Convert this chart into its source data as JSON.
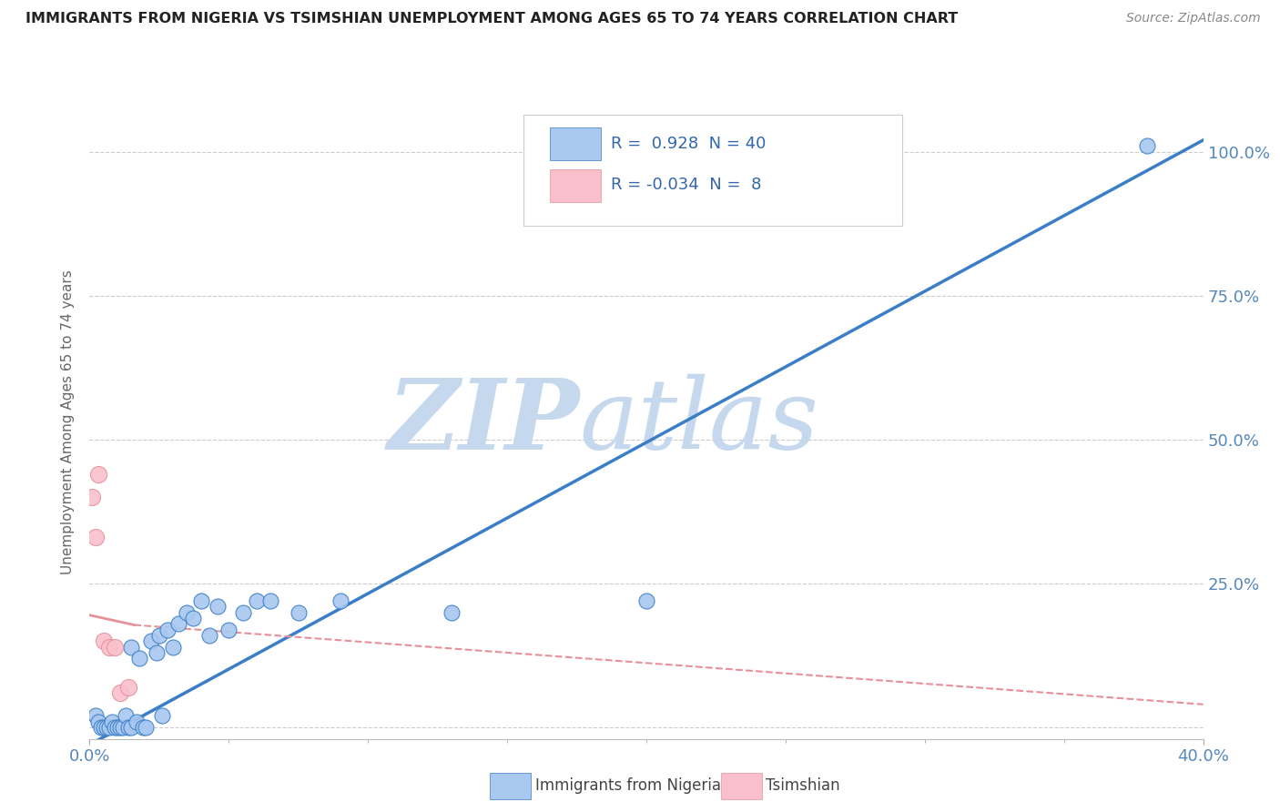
{
  "title": "IMMIGRANTS FROM NIGERIA VS TSIMSHIAN UNEMPLOYMENT AMONG AGES 65 TO 74 YEARS CORRELATION CHART",
  "source_text": "Source: ZipAtlas.com",
  "ylabel": "Unemployment Among Ages 65 to 74 years",
  "xlim": [
    0.0,
    0.4
  ],
  "ylim": [
    -0.02,
    1.08
  ],
  "ytick_positions": [
    0.0,
    0.25,
    0.5,
    0.75,
    1.0
  ],
  "ytick_labels": [
    "",
    "25.0%",
    "50.0%",
    "75.0%",
    "100.0%"
  ],
  "xtick_positions": [
    0.0,
    0.4
  ],
  "xtick_labels": [
    "0.0%",
    "40.0%"
  ],
  "nigeria_R": 0.928,
  "nigeria_N": 40,
  "tsimshian_R": -0.034,
  "tsimshian_N": 8,
  "nigeria_color": "#A8C8F0",
  "tsimshian_color": "#F9C0CC",
  "nigeria_line_color": "#3A7EC8",
  "tsimshian_line_color": "#E8909A",
  "tsimshian_solid_line": [
    [
      0.0,
      0.195
    ],
    [
      0.016,
      0.178
    ]
  ],
  "tsimshian_dashed_line": [
    [
      0.016,
      0.178
    ],
    [
      0.4,
      0.04
    ]
  ],
  "nigeria_regline": [
    [
      0.0,
      -0.03
    ],
    [
      0.4,
      1.02
    ]
  ],
  "watermark_zip": "ZIP",
  "watermark_atlas": "atlas",
  "watermark_color": "#C5D8EE",
  "background_color": "#FFFFFF",
  "grid_color": "#CCCCCC",
  "title_color": "#222222",
  "axis_label_color": "#666666",
  "tick_label_color": "#5588BB",
  "legend_R_color": "#3366AA",
  "nigeria_scatter": [
    [
      0.002,
      0.02
    ],
    [
      0.003,
      0.01
    ],
    [
      0.004,
      0.0
    ],
    [
      0.005,
      0.0
    ],
    [
      0.006,
      0.0
    ],
    [
      0.007,
      0.0
    ],
    [
      0.008,
      0.01
    ],
    [
      0.009,
      0.0
    ],
    [
      0.01,
      0.0
    ],
    [
      0.011,
      0.0
    ],
    [
      0.012,
      0.0
    ],
    [
      0.013,
      0.02
    ],
    [
      0.014,
      0.0
    ],
    [
      0.015,
      0.0
    ],
    [
      0.015,
      0.14
    ],
    [
      0.017,
      0.01
    ],
    [
      0.018,
      0.12
    ],
    [
      0.019,
      0.0
    ],
    [
      0.02,
      0.0
    ],
    [
      0.022,
      0.15
    ],
    [
      0.024,
      0.13
    ],
    [
      0.025,
      0.16
    ],
    [
      0.026,
      0.02
    ],
    [
      0.028,
      0.17
    ],
    [
      0.03,
      0.14
    ],
    [
      0.032,
      0.18
    ],
    [
      0.035,
      0.2
    ],
    [
      0.037,
      0.19
    ],
    [
      0.04,
      0.22
    ],
    [
      0.043,
      0.16
    ],
    [
      0.046,
      0.21
    ],
    [
      0.05,
      0.17
    ],
    [
      0.055,
      0.2
    ],
    [
      0.06,
      0.22
    ],
    [
      0.065,
      0.22
    ],
    [
      0.075,
      0.2
    ],
    [
      0.09,
      0.22
    ],
    [
      0.13,
      0.2
    ],
    [
      0.2,
      0.22
    ],
    [
      0.38,
      1.01
    ]
  ],
  "tsimshian_scatter": [
    [
      0.001,
      0.4
    ],
    [
      0.002,
      0.33
    ],
    [
      0.003,
      0.44
    ],
    [
      0.005,
      0.15
    ],
    [
      0.007,
      0.14
    ],
    [
      0.009,
      0.14
    ],
    [
      0.011,
      0.06
    ],
    [
      0.014,
      0.07
    ]
  ]
}
